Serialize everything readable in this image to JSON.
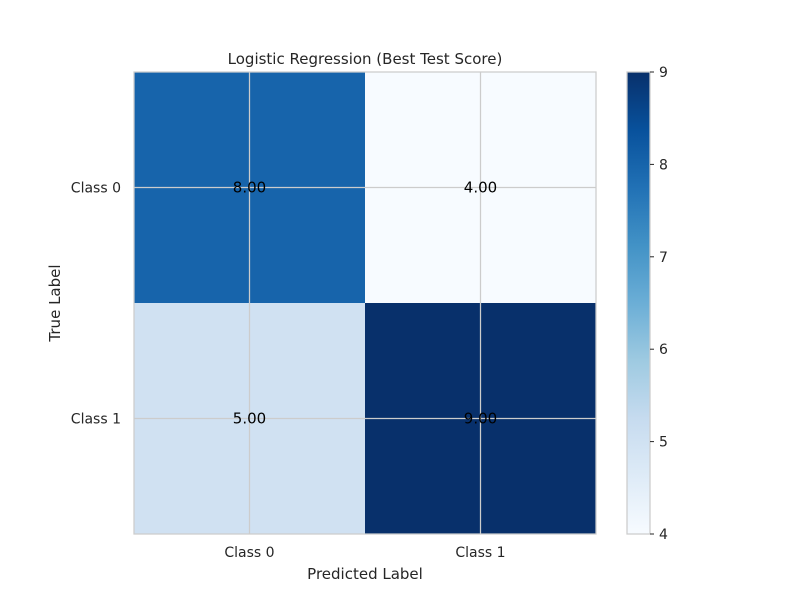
{
  "chart_data": {
    "type": "heatmap",
    "title": "Logistic Regression (Best Test Score)",
    "xlabel": "Predicted Label",
    "ylabel": "True Label",
    "x_categories": [
      "Class 0",
      "Class 1"
    ],
    "y_categories": [
      "Class 0",
      "Class 1"
    ],
    "values": [
      [
        8,
        4
      ],
      [
        5,
        9
      ]
    ],
    "cell_labels": [
      [
        "8.00",
        "4.00"
      ],
      [
        "5.00",
        "9.00"
      ]
    ],
    "colorbar": {
      "min": 4,
      "max": 9,
      "ticks": [
        4,
        5,
        6,
        7,
        8,
        9
      ],
      "colormap": "Blues"
    },
    "grid": true,
    "colors": {
      "low": "#f7fbff",
      "high": "#08306b",
      "grid": "#cccccc",
      "frame": "#cccccc",
      "text": "#000000"
    }
  }
}
